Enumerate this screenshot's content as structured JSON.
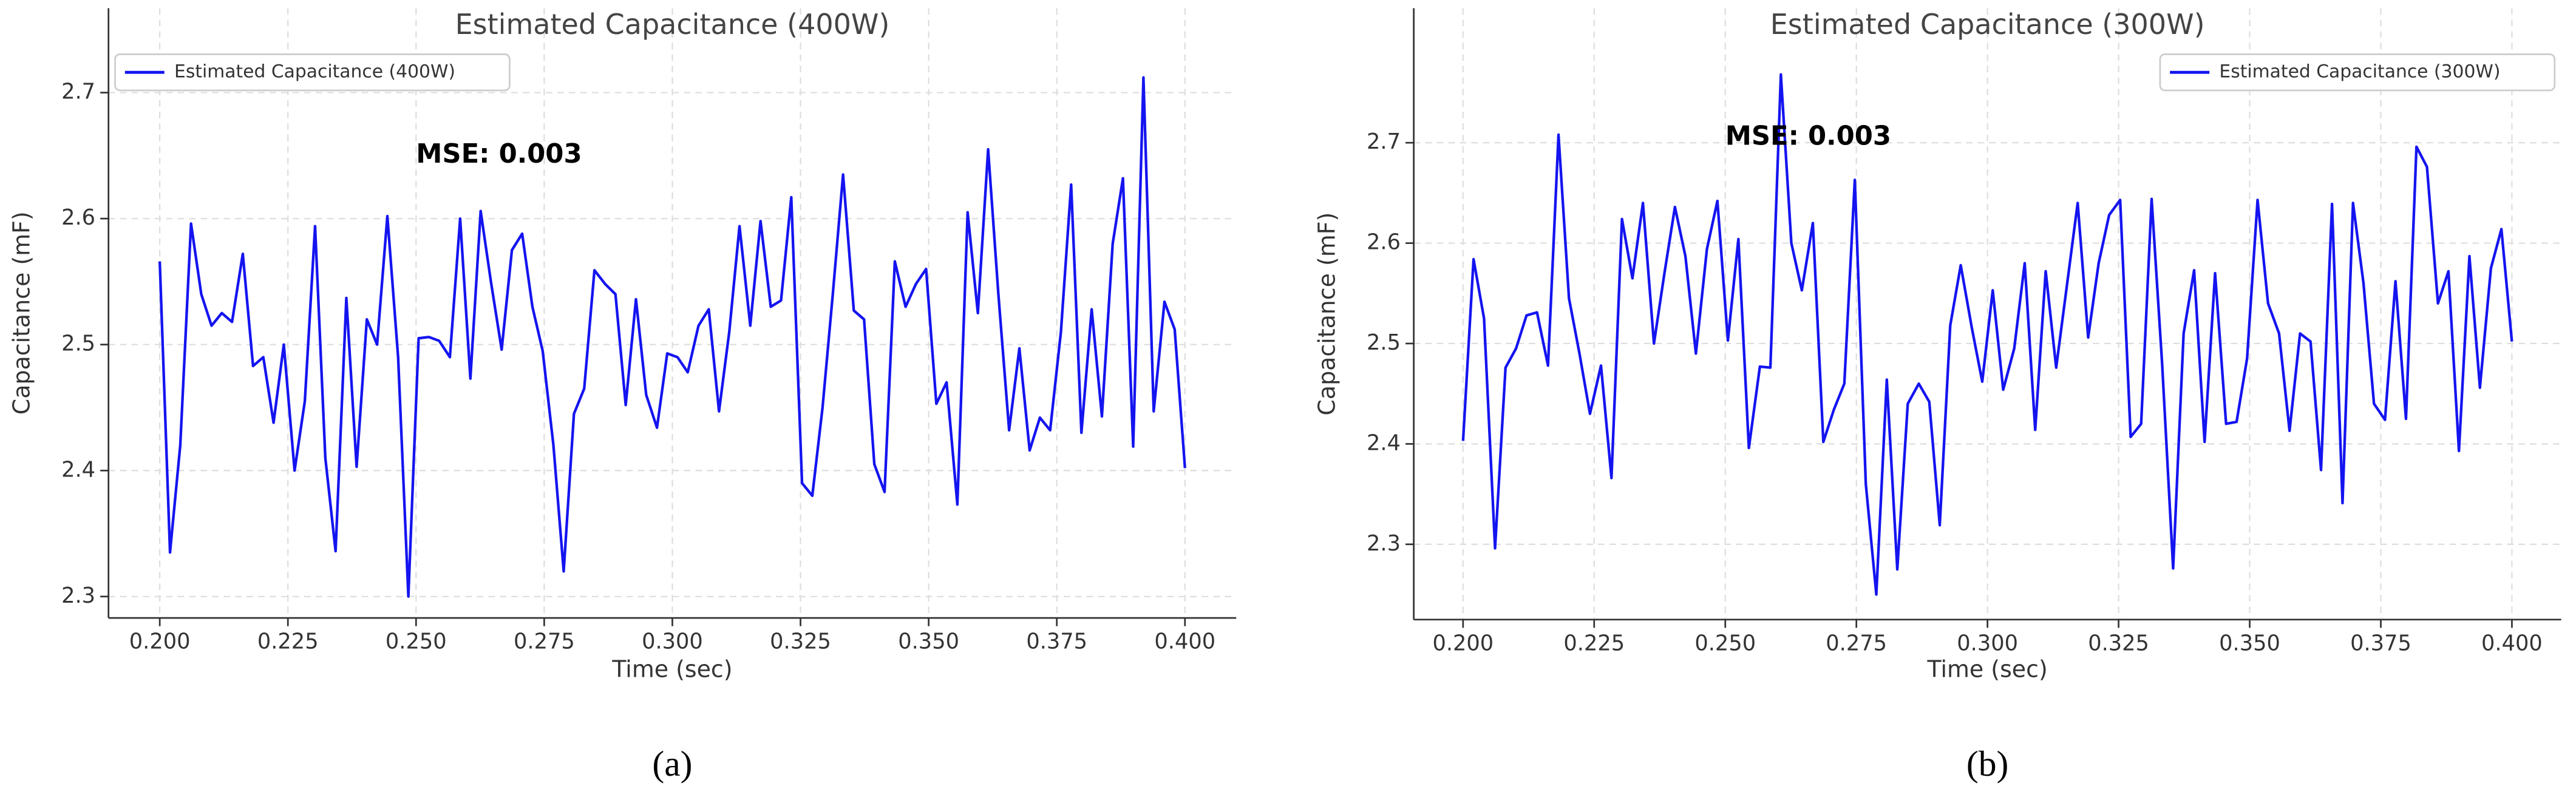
{
  "chart_data": [
    {
      "type": "line",
      "title": "Estimated Capacitance (400W)",
      "xlabel": "Time (sec)",
      "ylabel": "Capacitance (mF)",
      "caption": "(a)",
      "legend": "upper left",
      "grid": true,
      "xlim": [
        0.19,
        0.41
      ],
      "ylim": [
        2.283,
        2.767
      ],
      "xticks": [
        {
          "value": 0.2,
          "label": "0.200"
        },
        {
          "value": 0.225,
          "label": "0.225"
        },
        {
          "value": 0.25,
          "label": "0.250"
        },
        {
          "value": 0.275,
          "label": "0.275"
        },
        {
          "value": 0.3,
          "label": "0.300"
        },
        {
          "value": 0.325,
          "label": "0.325"
        },
        {
          "value": 0.35,
          "label": "0.350"
        },
        {
          "value": 0.375,
          "label": "0.375"
        },
        {
          "value": 0.4,
          "label": "0.400"
        }
      ],
      "yticks": [
        2.3,
        2.4,
        2.5,
        2.6,
        2.7
      ],
      "annotations": [
        {
          "text": "MSE: 0.003",
          "x": 0.25,
          "y": 2.65
        }
      ],
      "x": [
        0.2,
        0.202,
        0.204,
        0.2061,
        0.2081,
        0.2101,
        0.2121,
        0.2141,
        0.2162,
        0.2182,
        0.2202,
        0.2222,
        0.2242,
        0.2263,
        0.2283,
        0.2303,
        0.2323,
        0.2343,
        0.2364,
        0.2384,
        0.2404,
        0.2424,
        0.2444,
        0.2465,
        0.2485,
        0.2505,
        0.2525,
        0.2545,
        0.2566,
        0.2586,
        0.2606,
        0.2626,
        0.2646,
        0.2667,
        0.2687,
        0.2707,
        0.2727,
        0.2747,
        0.2768,
        0.2788,
        0.2808,
        0.2828,
        0.2848,
        0.2869,
        0.2889,
        0.2909,
        0.2929,
        0.2949,
        0.297,
        0.299,
        0.301,
        0.303,
        0.3051,
        0.3071,
        0.3091,
        0.3111,
        0.3131,
        0.3152,
        0.3172,
        0.3192,
        0.3212,
        0.3232,
        0.3253,
        0.3273,
        0.3293,
        0.3313,
        0.3333,
        0.3354,
        0.3374,
        0.3394,
        0.3414,
        0.3434,
        0.3455,
        0.3475,
        0.3495,
        0.3515,
        0.3535,
        0.3556,
        0.3576,
        0.3596,
        0.3616,
        0.3636,
        0.3657,
        0.3677,
        0.3697,
        0.3717,
        0.3737,
        0.3758,
        0.3778,
        0.3798,
        0.3818,
        0.3838,
        0.3859,
        0.3879,
        0.3899,
        0.3919,
        0.3939,
        0.396,
        0.398,
        0.4
      ],
      "series": [
        {
          "name": "Estimated Capacitance (400W)",
          "color": "#1414f0",
          "values": [
            2.566,
            2.335,
            2.42,
            2.596,
            2.54,
            2.515,
            2.525,
            2.518,
            2.572,
            2.483,
            2.49,
            2.438,
            2.5,
            2.4,
            2.455,
            2.594,
            2.41,
            2.336,
            2.537,
            2.403,
            2.52,
            2.5,
            2.602,
            2.49,
            2.3,
            2.505,
            2.506,
            2.503,
            2.49,
            2.6,
            2.473,
            2.606,
            2.55,
            2.496,
            2.575,
            2.588,
            2.53,
            2.495,
            2.42,
            2.32,
            2.445,
            2.465,
            2.559,
            2.548,
            2.54,
            2.452,
            2.536,
            2.46,
            2.434,
            2.493,
            2.49,
            2.478,
            2.515,
            2.528,
            2.447,
            2.51,
            2.594,
            2.515,
            2.598,
            2.53,
            2.535,
            2.617,
            2.39,
            2.38,
            2.45,
            2.54,
            2.635,
            2.527,
            2.52,
            2.405,
            2.383,
            2.566,
            2.53,
            2.548,
            2.56,
            2.453,
            2.47,
            2.373,
            2.605,
            2.525,
            2.655,
            2.54,
            2.432,
            2.497,
            2.416,
            2.442,
            2.432,
            2.51,
            2.627,
            2.43,
            2.528,
            2.443,
            2.58,
            2.632,
            2.419,
            2.712,
            2.447,
            2.534,
            2.512,
            2.402
          ]
        }
      ]
    },
    {
      "type": "line",
      "title": "Estimated Capacitance (300W)",
      "xlabel": "Time (sec)",
      "ylabel": "Capacitance (mF)",
      "caption": "(b)",
      "legend": "upper right",
      "grid": true,
      "xlim": [
        0.1906,
        0.4094
      ],
      "ylim": [
        2.225,
        2.834
      ],
      "xticks": [
        {
          "value": 0.2,
          "label": "0.200"
        },
        {
          "value": 0.225,
          "label": "0.225"
        },
        {
          "value": 0.25,
          "label": "0.250"
        },
        {
          "value": 0.275,
          "label": "0.275"
        },
        {
          "value": 0.3,
          "label": "0.300"
        },
        {
          "value": 0.325,
          "label": "0.325"
        },
        {
          "value": 0.35,
          "label": "0.350"
        },
        {
          "value": 0.375,
          "label": "0.375"
        },
        {
          "value": 0.4,
          "label": "0.400"
        }
      ],
      "yticks": [
        2.3,
        2.4,
        2.5,
        2.6,
        2.7
      ],
      "annotations": [
        {
          "text": "MSE: 0.003",
          "x": 0.25,
          "y": 2.705
        }
      ],
      "x": [
        0.2,
        0.202,
        0.204,
        0.2061,
        0.2081,
        0.2101,
        0.2121,
        0.2141,
        0.2162,
        0.2182,
        0.2202,
        0.2222,
        0.2242,
        0.2263,
        0.2283,
        0.2303,
        0.2323,
        0.2343,
        0.2364,
        0.2384,
        0.2404,
        0.2424,
        0.2444,
        0.2465,
        0.2485,
        0.2505,
        0.2525,
        0.2545,
        0.2566,
        0.2586,
        0.2606,
        0.2626,
        0.2646,
        0.2667,
        0.2687,
        0.2707,
        0.2727,
        0.2747,
        0.2768,
        0.2788,
        0.2808,
        0.2828,
        0.2848,
        0.2869,
        0.2889,
        0.2909,
        0.2929,
        0.2949,
        0.297,
        0.299,
        0.301,
        0.303,
        0.3051,
        0.3071,
        0.3091,
        0.3111,
        0.3131,
        0.3152,
        0.3172,
        0.3192,
        0.3212,
        0.3232,
        0.3253,
        0.3273,
        0.3293,
        0.3313,
        0.3333,
        0.3354,
        0.3374,
        0.3394,
        0.3414,
        0.3434,
        0.3455,
        0.3475,
        0.3495,
        0.3515,
        0.3535,
        0.3556,
        0.3576,
        0.3596,
        0.3616,
        0.3636,
        0.3657,
        0.3677,
        0.3697,
        0.3717,
        0.3737,
        0.3758,
        0.3778,
        0.3798,
        0.3818,
        0.3838,
        0.3859,
        0.3879,
        0.3899,
        0.3919,
        0.3939,
        0.396,
        0.398,
        0.4
      ],
      "series": [
        {
          "name": "Estimated Capacitance (300W)",
          "color": "#1414f0",
          "values": [
            2.403,
            2.584,
            2.525,
            2.296,
            2.476,
            2.495,
            2.528,
            2.531,
            2.478,
            2.708,
            2.545,
            2.49,
            2.43,
            2.478,
            2.366,
            2.624,
            2.565,
            2.64,
            2.5,
            2.57,
            2.636,
            2.587,
            2.49,
            2.594,
            2.642,
            2.503,
            2.604,
            2.396,
            2.477,
            2.476,
            2.768,
            2.6,
            2.553,
            2.62,
            2.402,
            2.434,
            2.46,
            2.663,
            2.36,
            2.25,
            2.464,
            2.275,
            2.44,
            2.46,
            2.442,
            2.319,
            2.518,
            2.578,
            2.516,
            2.462,
            2.553,
            2.454,
            2.495,
            2.58,
            2.414,
            2.572,
            2.476,
            2.56,
            2.64,
            2.506,
            2.58,
            2.628,
            2.643,
            2.407,
            2.42,
            2.644,
            2.48,
            2.276,
            2.51,
            2.573,
            2.402,
            2.57,
            2.42,
            2.422,
            2.485,
            2.643,
            2.54,
            2.51,
            2.413,
            2.51,
            2.502,
            2.374,
            2.639,
            2.341,
            2.64,
            2.56,
            2.44,
            2.424,
            2.562,
            2.425,
            2.696,
            2.676,
            2.54,
            2.572,
            2.393,
            2.587,
            2.456,
            2.575,
            2.614,
            2.502
          ]
        }
      ]
    }
  ]
}
